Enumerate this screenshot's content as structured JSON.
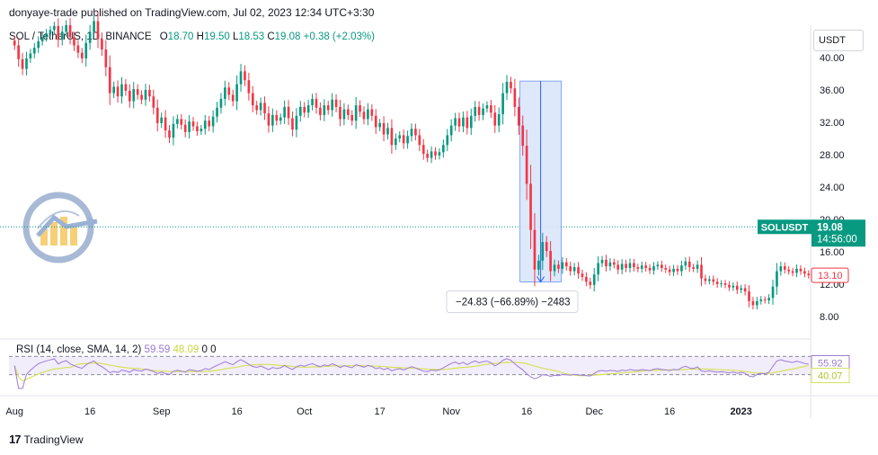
{
  "header": {
    "published_text": "donyaye-trade published on TradingView.com, Jul 02, 2023 12:34 UTC+3:30"
  },
  "legend": {
    "symbol": "SOL / TetherUS, 1D, BINANCE",
    "open_label": "O",
    "open": "18.70",
    "high_label": "H",
    "high": "19.50",
    "low_label": "L",
    "low": "18.53",
    "close_label": "C",
    "close": "19.08",
    "change": "+0.38 (+2.03%)"
  },
  "currency_button": "USDT",
  "price_tags": {
    "symbol_tag": "SOLUSDT",
    "last_price": "19.08",
    "countdown": "14:56:00",
    "marker_price": "13.10"
  },
  "measure": {
    "label": "−24.83 (−66.89%) −2483"
  },
  "rsi": {
    "legend_label": "RSI (14, close, SMA, 14, 2)",
    "rsi_value": "59.59",
    "sma_value": "48.09",
    "extra_1": "0",
    "extra_2": "0",
    "tag_rsi": "55.92",
    "tag_sma": "40.07",
    "rsi_color": "#9c7ad6",
    "sma_color": "#d6e25a",
    "upper_band": 70,
    "lower_band": 30
  },
  "footer": {
    "brand": "TradingView"
  },
  "colors": {
    "up": "#089981",
    "down": "#f23645",
    "measure_fill": "#dbe6fb",
    "measure_stroke": "#2962ff"
  },
  "chart_data": {
    "type": "candlestick",
    "symbol": "SOLUSDT",
    "y_ticks": [
      8,
      12,
      16,
      20,
      24,
      28,
      32,
      36,
      40
    ],
    "y_tick_labels": [
      "8.00",
      "12.00",
      "16.00",
      "20.00",
      "24.00",
      "28.00",
      "32.00",
      "36.00",
      "40.00"
    ],
    "ylim": [
      6.0,
      44.0
    ],
    "x_tick_labels": [
      "Aug",
      "16",
      "Sep",
      "16",
      "Oct",
      "17",
      "Nov",
      "16",
      "Dec",
      "16",
      "2023"
    ],
    "closes": [
      41.5,
      39.8,
      38.6,
      39.9,
      40.5,
      41.2,
      42.0,
      42.5,
      43.0,
      43.4,
      43.9,
      42.2,
      43.2,
      44.0,
      42.5,
      41.5,
      40.6,
      39.9,
      41.8,
      43.2,
      44.5,
      42.3,
      41.0,
      38.8,
      35.6,
      36.4,
      35.2,
      36.7,
      35.9,
      34.6,
      36.1,
      35.4,
      34.8,
      36.0,
      35.2,
      33.8,
      31.9,
      32.6,
      31.0,
      30.1,
      31.8,
      32.4,
      31.7,
      30.8,
      32.1,
      31.5,
      30.9,
      31.2,
      32.2,
      31.5,
      32.7,
      33.8,
      34.9,
      36.3,
      35.4,
      34.6,
      36.7,
      38.3,
      37.2,
      35.6,
      34.1,
      33.5,
      34.4,
      33.1,
      31.6,
      32.9,
      32.2,
      32.6,
      33.9,
      32.5,
      31.1,
      32.8,
      33.9,
      33.2,
      34.1,
      34.9,
      33.8,
      32.9,
      34.1,
      33.5,
      34.8,
      33.9,
      32.4,
      33.6,
      32.9,
      32.2,
      34.1,
      33.3,
      32.4,
      33.6,
      32.8,
      31.4,
      31.9,
      30.5,
      31.3,
      29.2,
      30.0,
      30.4,
      29.4,
      30.3,
      31.2,
      30.4,
      29.2,
      28.1,
      27.6,
      28.4,
      27.9,
      28.3,
      29.2,
      30.4,
      31.6,
      32.5,
      31.5,
      32.6,
      31.3,
      32.8,
      33.9,
      32.9,
      33.7,
      34.1,
      33.2,
      31.6,
      33.0,
      35.6,
      37.0,
      36.2,
      33.9,
      31.6,
      29.1,
      24.4,
      18.7,
      13.8,
      14.9,
      17.2,
      16.1,
      13.6,
      14.4,
      13.9,
      14.7,
      14.2,
      13.6,
      14.1,
      13.3,
      12.9,
      12.3,
      11.9,
      13.2,
      14.6,
      15.0,
      14.2,
      14.7,
      14.4,
      13.8,
      14.5,
      14.0,
      14.6,
      14.1,
      13.9,
      14.3,
      14.0,
      13.7,
      14.2,
      14.4,
      14.0,
      13.8,
      13.5,
      13.9,
      13.6,
      14.3,
      14.8,
      14.1,
      13.9,
      14.4,
      12.7,
      12.4,
      12.6,
      12.3,
      12.0,
      12.1,
      11.9,
      11.6,
      11.8,
      11.3,
      11.5,
      11.1,
      9.9,
      9.4,
      9.9,
      10.1,
      10.0,
      10.3,
      11.7,
      13.6,
      14.2,
      13.8,
      13.6,
      13.4,
      13.9,
      13.6,
      13.3,
      13.1
    ],
    "measure_from": 37.1,
    "measure_to": 12.27,
    "rsi_ylim": [
      0,
      100
    ],
    "rsi_ticks": [
      70,
      30
    ]
  }
}
